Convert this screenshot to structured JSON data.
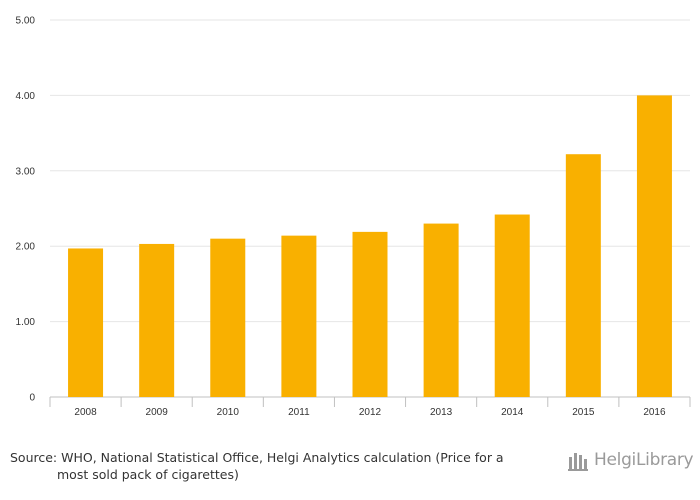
{
  "chart_data": {
    "type": "bar",
    "categories": [
      "2008",
      "2009",
      "2010",
      "2011",
      "2012",
      "2013",
      "2014",
      "2015",
      "2016"
    ],
    "values": [
      1.97,
      2.03,
      2.1,
      2.14,
      2.19,
      2.3,
      2.42,
      3.22,
      4.0
    ],
    "ylim": [
      0,
      5
    ],
    "yticks": [
      0,
      1,
      2,
      3,
      4,
      5
    ],
    "ytick_labels": [
      "0",
      "1.00",
      "2.00",
      "3.00",
      "4.00",
      "5.00"
    ],
    "bar_color": "#f9b000",
    "grid": true
  },
  "footer": {
    "source_line1": "Source: WHO, National Statistical Office, Helgi Analytics calculation (Price for a",
    "source_line2": "most sold pack of cigarettes)",
    "logo_text": "HelgiLibrary"
  }
}
